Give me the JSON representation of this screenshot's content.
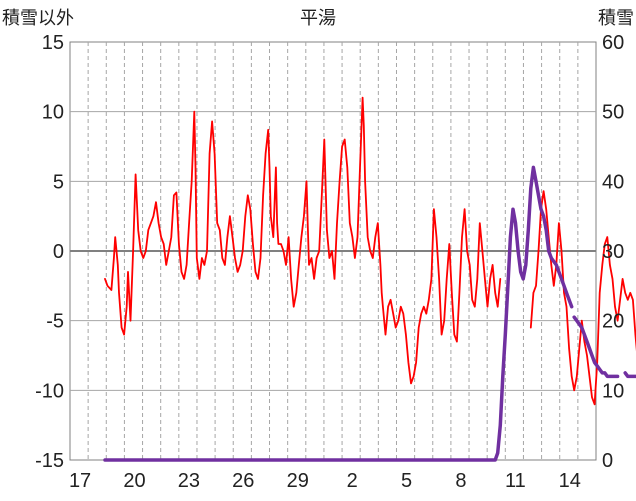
{
  "chart_data": {
    "type": "line",
    "title": "平湯",
    "left_axis_label": "積雪以外",
    "right_axis_label": "積雪",
    "left_ylim": [
      -15,
      15
    ],
    "left_ticks": [
      "15",
      "10",
      "5",
      "0",
      "-5",
      "-10",
      "-15"
    ],
    "right_ylim": [
      0,
      60
    ],
    "right_ticks": [
      "60",
      "50",
      "40",
      "30",
      "20",
      "10",
      "0"
    ],
    "x_tick_labels": [
      "17",
      "20",
      "23",
      "26",
      "29",
      "2",
      "5",
      "8",
      "11",
      "14"
    ],
    "grid": true,
    "colors": {
      "temperature": "#ff0000",
      "snow_depth": "#7030a0",
      "grid": "#a6a6a6",
      "zero_line": "#808080"
    },
    "series": [
      {
        "axis": "left",
        "color": "#ff0000",
        "points": [
          [
            0,
            -2
          ],
          [
            0.2,
            -2.5
          ],
          [
            0.5,
            -2.8
          ],
          [
            0.7,
            -0.5
          ],
          [
            0.8,
            1
          ],
          [
            1.0,
            -1
          ],
          [
            1.1,
            -3
          ],
          [
            1.3,
            -5.5
          ],
          [
            1.5,
            -6
          ],
          [
            1.7,
            -4
          ],
          [
            1.8,
            -1.5
          ],
          [
            2.0,
            -5
          ],
          [
            2.2,
            0
          ],
          [
            2.4,
            5.5
          ],
          [
            2.6,
            1.5
          ],
          [
            2.8,
            0
          ],
          [
            3.0,
            -0.5
          ],
          [
            3.2,
            0
          ],
          [
            3.4,
            1.5
          ],
          [
            3.6,
            2
          ],
          [
            3.8,
            2.5
          ],
          [
            4.0,
            3.5
          ],
          [
            4.2,
            2
          ],
          [
            4.4,
            1
          ],
          [
            4.6,
            0.5
          ],
          [
            4.8,
            -1
          ],
          [
            5.0,
            0
          ],
          [
            5.2,
            1
          ],
          [
            5.4,
            4
          ],
          [
            5.6,
            4.2
          ],
          [
            5.8,
            0.5
          ],
          [
            6.0,
            -1.5
          ],
          [
            6.2,
            -2
          ],
          [
            6.4,
            -1
          ],
          [
            6.6,
            2
          ],
          [
            6.8,
            5
          ],
          [
            7.0,
            10
          ],
          [
            7.1,
            6
          ],
          [
            7.2,
            -0.5
          ],
          [
            7.4,
            -2
          ],
          [
            7.6,
            -0.5
          ],
          [
            7.8,
            -1
          ],
          [
            8.0,
            0
          ],
          [
            8.2,
            7
          ],
          [
            8.4,
            9.3
          ],
          [
            8.6,
            7
          ],
          [
            8.8,
            2
          ],
          [
            9.0,
            1.5
          ],
          [
            9.2,
            -0.5
          ],
          [
            9.4,
            -1
          ],
          [
            9.6,
            1
          ],
          [
            9.8,
            2.5
          ],
          [
            10.0,
            1
          ],
          [
            10.2,
            -0.5
          ],
          [
            10.4,
            -1.5
          ],
          [
            10.6,
            -1
          ],
          [
            10.8,
            0
          ],
          [
            11.0,
            2.5
          ],
          [
            11.2,
            4
          ],
          [
            11.4,
            3
          ],
          [
            11.6,
            0.5
          ],
          [
            11.8,
            -1.5
          ],
          [
            12.0,
            -2
          ],
          [
            12.2,
            -0.5
          ],
          [
            12.4,
            4
          ],
          [
            12.6,
            7
          ],
          [
            12.8,
            8.7
          ],
          [
            12.9,
            6
          ],
          [
            13.0,
            2.5
          ],
          [
            13.2,
            1
          ],
          [
            13.4,
            6
          ],
          [
            13.5,
            2
          ],
          [
            13.6,
            0.5
          ],
          [
            13.8,
            0.5
          ],
          [
            14.0,
            0
          ],
          [
            14.2,
            -1
          ],
          [
            14.4,
            1
          ],
          [
            14.6,
            -2
          ],
          [
            14.8,
            -4
          ],
          [
            15.0,
            -3
          ],
          [
            15.2,
            -1
          ],
          [
            15.4,
            1
          ],
          [
            15.6,
            2.5
          ],
          [
            15.8,
            5
          ],
          [
            15.9,
            2
          ],
          [
            16.0,
            -1
          ],
          [
            16.2,
            -0.5
          ],
          [
            16.4,
            -2
          ],
          [
            16.6,
            -0.5
          ],
          [
            16.8,
            0
          ],
          [
            17.0,
            4
          ],
          [
            17.2,
            8
          ],
          [
            17.4,
            1.5
          ],
          [
            17.6,
            -0.5
          ],
          [
            17.8,
            0
          ],
          [
            18.0,
            -2
          ],
          [
            18.2,
            2
          ],
          [
            18.4,
            5
          ],
          [
            18.6,
            7.5
          ],
          [
            18.8,
            8
          ],
          [
            19.0,
            6
          ],
          [
            19.2,
            2
          ],
          [
            19.4,
            1
          ],
          [
            19.6,
            -0.5
          ],
          [
            19.8,
            1
          ],
          [
            20.0,
            6
          ],
          [
            20.2,
            11
          ],
          [
            20.3,
            9
          ],
          [
            20.4,
            5
          ],
          [
            20.6,
            1
          ],
          [
            20.8,
            0
          ],
          [
            21.0,
            -0.5
          ],
          [
            21.2,
            1
          ],
          [
            21.4,
            2
          ],
          [
            21.6,
            -1
          ],
          [
            21.7,
            -3
          ],
          [
            21.8,
            -4
          ],
          [
            22.0,
            -6
          ],
          [
            22.1,
            -5
          ],
          [
            22.2,
            -4
          ],
          [
            22.4,
            -3.5
          ],
          [
            22.6,
            -4.5
          ],
          [
            22.8,
            -5.5
          ],
          [
            23.0,
            -5
          ],
          [
            23.2,
            -4
          ],
          [
            23.4,
            -4.5
          ],
          [
            23.6,
            -6
          ],
          [
            23.8,
            -8
          ],
          [
            24.0,
            -9.5
          ],
          [
            24.2,
            -9
          ],
          [
            24.4,
            -8
          ],
          [
            24.6,
            -5.5
          ],
          [
            24.8,
            -4.5
          ],
          [
            25.0,
            -4
          ],
          [
            25.2,
            -4.5
          ],
          [
            25.4,
            -3.5
          ],
          [
            25.6,
            -2
          ],
          [
            25.8,
            3
          ],
          [
            26.0,
            1
          ],
          [
            26.2,
            -2
          ],
          [
            26.4,
            -6
          ],
          [
            26.6,
            -5
          ],
          [
            26.8,
            -2
          ],
          [
            27.0,
            0.5
          ],
          [
            27.2,
            -3
          ],
          [
            27.4,
            -6
          ],
          [
            27.6,
            -6.5
          ],
          [
            27.8,
            -3
          ],
          [
            28.0,
            1
          ],
          [
            28.2,
            3
          ],
          [
            28.4,
            0
          ],
          [
            28.6,
            -1
          ],
          [
            28.8,
            -3.5
          ],
          [
            29.0,
            -4
          ],
          [
            29.2,
            -2
          ],
          [
            29.4,
            2
          ],
          [
            29.6,
            0
          ],
          [
            29.8,
            -2
          ],
          [
            30.0,
            -4
          ],
          [
            30.2,
            -2
          ],
          [
            30.4,
            -1
          ],
          [
            30.6,
            -3
          ],
          [
            30.8,
            -4
          ],
          [
            31.0,
            -2
          ]
        ]
      },
      {
        "axis": "left",
        "color": "#ff0000",
        "points": [
          [
            33.4,
            -5.5
          ],
          [
            33.6,
            -3
          ],
          [
            33.8,
            -2.5
          ],
          [
            34.0,
            0
          ],
          [
            34.2,
            3
          ],
          [
            34.4,
            4.3
          ],
          [
            34.6,
            3
          ],
          [
            34.8,
            1
          ],
          [
            35.0,
            -1
          ],
          [
            35.2,
            -2.5
          ],
          [
            35.4,
            -1
          ],
          [
            35.6,
            2
          ],
          [
            35.8,
            0
          ],
          [
            36.0,
            -3
          ],
          [
            36.2,
            -4
          ],
          [
            36.4,
            -7
          ],
          [
            36.6,
            -9
          ],
          [
            36.8,
            -10
          ],
          [
            37.0,
            -9
          ],
          [
            37.2,
            -7
          ],
          [
            37.4,
            -5
          ],
          [
            37.6,
            -6.5
          ],
          [
            37.8,
            -7.5
          ],
          [
            38.0,
            -9
          ],
          [
            38.2,
            -10.5
          ],
          [
            38.4,
            -11
          ],
          [
            38.6,
            -8
          ],
          [
            38.8,
            -3
          ],
          [
            39.0,
            -1
          ],
          [
            39.2,
            0.5
          ],
          [
            39.4,
            1
          ],
          [
            39.6,
            -1
          ],
          [
            39.8,
            -2
          ],
          [
            40.0,
            -4
          ],
          [
            40.2,
            -5
          ],
          [
            40.4,
            -3.5
          ],
          [
            40.6,
            -2
          ],
          [
            40.8,
            -3
          ],
          [
            41.0,
            -3.5
          ],
          [
            41.2,
            -3
          ],
          [
            41.4,
            -3.5
          ],
          [
            41.6,
            -6
          ],
          [
            41.8,
            -8
          ],
          [
            42.0,
            -10.5
          ]
        ]
      },
      {
        "axis": "right",
        "color": "#7030a0",
        "points": [
          [
            0,
            0
          ],
          [
            30.6,
            0
          ],
          [
            30.8,
            1
          ],
          [
            31.0,
            5
          ],
          [
            31.2,
            12
          ],
          [
            31.4,
            18
          ],
          [
            31.6,
            25
          ],
          [
            31.8,
            32
          ],
          [
            32.0,
            36
          ],
          [
            32.2,
            34
          ],
          [
            32.4,
            30
          ],
          [
            32.6,
            27
          ],
          [
            32.8,
            26
          ],
          [
            33.0,
            28
          ],
          [
            33.2,
            33
          ],
          [
            33.4,
            39
          ],
          [
            33.6,
            42
          ],
          [
            33.8,
            40
          ],
          [
            34.0,
            38
          ],
          [
            34.2,
            36
          ],
          [
            34.4,
            35
          ],
          [
            34.6,
            33
          ],
          [
            34.8,
            30
          ],
          [
            35.0,
            29
          ],
          [
            35.2,
            28.5
          ],
          [
            35.4,
            28
          ],
          [
            35.6,
            27
          ],
          [
            35.8,
            26
          ],
          [
            36.0,
            25
          ],
          [
            36.2,
            24
          ],
          [
            36.4,
            23
          ],
          [
            36.6,
            22
          ]
        ]
      },
      {
        "axis": "right",
        "color": "#7030a0",
        "points": [
          [
            36.8,
            20.5
          ],
          [
            37.0,
            20
          ],
          [
            37.2,
            19.5
          ],
          [
            37.4,
            19
          ],
          [
            37.6,
            18
          ],
          [
            37.8,
            17
          ],
          [
            38.0,
            16
          ],
          [
            38.2,
            15
          ],
          [
            38.4,
            14
          ],
          [
            38.6,
            13.5
          ],
          [
            38.8,
            13
          ],
          [
            39.0,
            12.5
          ],
          [
            39.2,
            12.5
          ],
          [
            39.4,
            12
          ],
          [
            39.6,
            12
          ],
          [
            39.8,
            12
          ],
          [
            40.0,
            12
          ],
          [
            40.2,
            12
          ]
        ]
      },
      {
        "axis": "right",
        "color": "#7030a0",
        "points": [
          [
            40.8,
            12.5
          ],
          [
            41.0,
            12
          ],
          [
            41.2,
            12
          ],
          [
            41.4,
            12
          ],
          [
            41.6,
            12
          ],
          [
            41.8,
            12
          ],
          [
            42.0,
            12
          ],
          [
            42.2,
            12
          ],
          [
            42.4,
            12
          ],
          [
            42.6,
            12
          ],
          [
            42.8,
            12
          ]
        ]
      }
    ]
  }
}
